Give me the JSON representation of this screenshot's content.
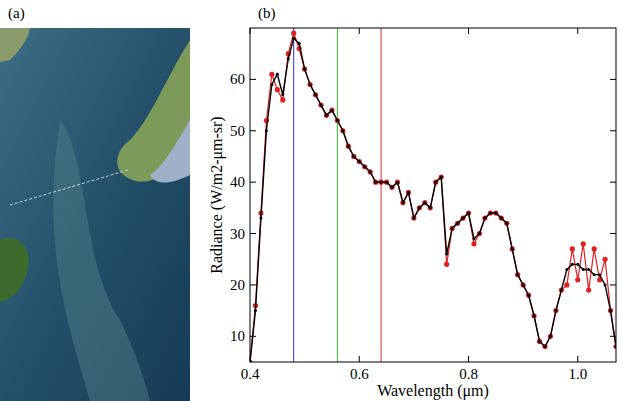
{
  "panel_labels": [
    "(a)",
    "(b)"
  ],
  "chart_data": {
    "type": "line",
    "xlabel": "Wavelength (μm)",
    "ylabel": "Radiance (W/m2-μm-sr)",
    "xlim": [
      0.4,
      1.07
    ],
    "ylim": [
      5,
      70
    ],
    "xticks": [
      0.4,
      0.6,
      0.8,
      {
        "value": 1.0,
        "label": "1.0"
      }
    ],
    "yticks": [
      10,
      20,
      30,
      40,
      50,
      60
    ],
    "grid": false,
    "vlines": [
      {
        "value": 0.48,
        "color": "#3030d0"
      },
      {
        "value": 0.56,
        "color": "#30c030"
      },
      {
        "value": 0.64,
        "color": "#e03030"
      }
    ],
    "x": [
      0.4,
      0.41,
      0.42,
      0.43,
      0.44,
      0.45,
      0.46,
      0.47,
      0.48,
      0.49,
      0.5,
      0.51,
      0.52,
      0.53,
      0.54,
      0.55,
      0.56,
      0.57,
      0.58,
      0.59,
      0.6,
      0.61,
      0.62,
      0.63,
      0.64,
      0.65,
      0.66,
      0.67,
      0.68,
      0.69,
      0.7,
      0.71,
      0.72,
      0.73,
      0.74,
      0.75,
      0.76,
      0.77,
      0.78,
      0.79,
      0.8,
      0.81,
      0.82,
      0.83,
      0.84,
      0.85,
      0.86,
      0.87,
      0.88,
      0.89,
      0.9,
      0.91,
      0.92,
      0.93,
      0.94,
      0.95,
      0.96,
      0.97,
      0.98,
      0.99,
      1.0,
      1.01,
      1.02,
      1.03,
      1.04,
      1.05,
      1.06,
      1.07
    ],
    "series": [
      {
        "color": "#e02020",
        "marker": "circle",
        "line_style": "solid",
        "values": [
          5,
          16,
          34,
          52,
          61,
          58,
          56,
          65,
          69,
          66,
          62,
          59,
          57,
          55,
          53,
          54,
          52,
          50,
          47,
          45,
          44,
          43,
          42,
          40,
          40,
          40,
          39,
          40,
          36,
          38,
          33,
          35,
          36,
          35,
          40,
          41,
          24,
          31,
          32,
          33,
          34,
          28,
          30,
          33,
          34,
          34,
          33,
          32,
          27,
          22,
          20,
          18,
          14,
          9,
          8,
          10,
          15,
          19,
          20,
          27,
          21,
          28,
          19,
          27,
          21,
          25,
          15,
          8
        ]
      },
      {
        "color": "#000000",
        "marker": "circle",
        "line_style": "solid",
        "values": [
          5,
          15,
          33,
          50,
          59,
          61,
          57,
          64,
          68,
          67,
          62,
          59,
          57,
          55,
          53,
          54,
          52,
          50,
          47,
          45,
          44,
          43,
          42,
          40,
          40,
          40,
          39,
          40,
          36,
          38,
          33,
          35,
          36,
          35,
          40,
          41,
          26,
          31,
          32,
          33,
          34,
          29,
          30,
          33,
          34,
          34,
          33,
          32,
          27,
          22,
          20,
          18,
          14,
          9,
          8,
          10,
          15,
          19,
          23,
          24,
          24,
          23,
          23,
          22,
          22,
          20,
          15,
          8
        ]
      }
    ]
  }
}
